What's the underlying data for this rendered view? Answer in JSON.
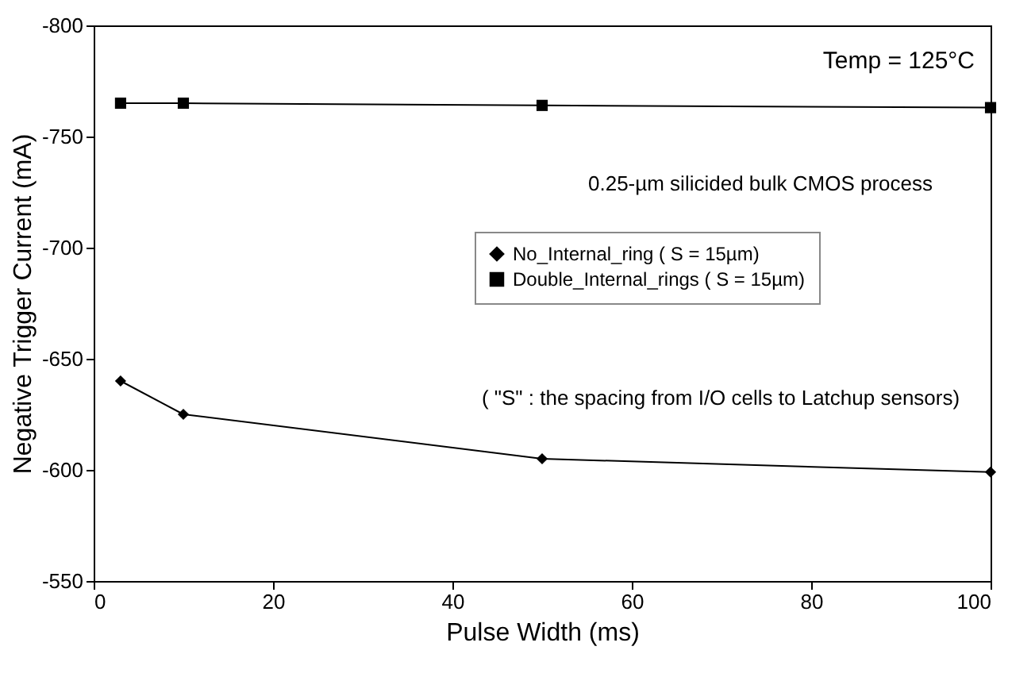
{
  "chart_data": {
    "type": "line",
    "xlabel": "Pulse Width (ms)",
    "ylabel": "Negative Trigger Current (mA)",
    "x": [
      3,
      10,
      50,
      100
    ],
    "series": [
      {
        "name": "No_Internal_ring ( S = 15µm)",
        "color": "#000000",
        "marker": "diamond",
        "values": [
          -640,
          -625,
          -605,
          -599
        ]
      },
      {
        "name": "Double_Internal_rings ( S = 15µm)",
        "color": "#000000",
        "marker": "square",
        "values": [
          -765,
          -765,
          -764,
          -763
        ]
      }
    ],
    "xlim": [
      0,
      100
    ],
    "xticks": [
      0,
      20,
      40,
      60,
      80,
      100
    ],
    "ylim": [
      -550,
      -800
    ],
    "yticks": [
      -550,
      -600,
      -650,
      -700,
      -750,
      -800
    ],
    "grid": false,
    "legend": "right",
    "annotations": [
      "Temp = 125°C",
      "0.25-µm silicided bulk CMOS process",
      "( \"S\" : the spacing from I/O cells to Latchup sensors)"
    ]
  }
}
